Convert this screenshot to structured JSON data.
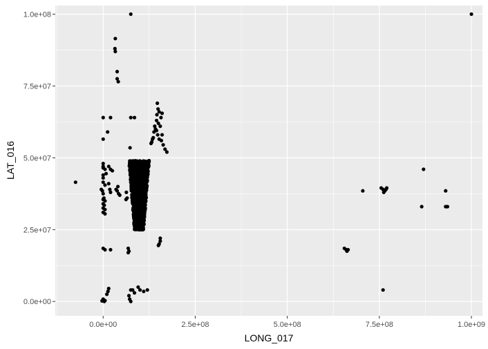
{
  "chart_data": {
    "type": "scatter",
    "xlabel": "LONG_017",
    "ylabel": "LAT_016",
    "xlim": [
      -130000000,
      1030000000
    ],
    "ylim": [
      -5000000,
      103000000
    ],
    "x_ticks": [
      {
        "value": 0,
        "label": "0.0e+00"
      },
      {
        "value": 250000000,
        "label": "2.5e+08"
      },
      {
        "value": 500000000,
        "label": "5.0e+08"
      },
      {
        "value": 750000000,
        "label": "7.5e+08"
      },
      {
        "value": 1000000000,
        "label": "1.0e+09"
      }
    ],
    "y_ticks": [
      {
        "value": 0,
        "label": "0.0e+00"
      },
      {
        "value": 25000000,
        "label": "2.5e+07"
      },
      {
        "value": 50000000,
        "label": "5.0e+07"
      },
      {
        "value": 75000000,
        "label": "7.5e+07"
      },
      {
        "value": 100000000,
        "label": "1.0e+08"
      }
    ],
    "grid": true,
    "background": "#EBEBEB",
    "grid_color": "#FFFFFF",
    "point_color": "#000000",
    "points": [
      [
        75000000,
        100000000
      ],
      [
        1000000000,
        100000000
      ],
      [
        -75000000,
        41500000
      ],
      [
        33000000,
        91500000
      ],
      [
        32000000,
        88000000
      ],
      [
        33000000,
        87000000
      ],
      [
        38000000,
        80000000
      ],
      [
        38000000,
        77500000
      ],
      [
        41000000,
        76500000
      ],
      [
        0,
        64000000
      ],
      [
        0,
        56500000
      ],
      [
        12000000,
        59000000
      ],
      [
        20000000,
        64000000
      ],
      [
        75000000,
        64000000
      ],
      [
        85000000,
        64000000
      ],
      [
        73000000,
        53500000
      ],
      [
        147000000,
        69000000
      ],
      [
        149000000,
        67000000
      ],
      [
        146000000,
        65000000
      ],
      [
        152000000,
        66000000
      ],
      [
        145000000,
        63000000
      ],
      [
        150000000,
        62000000
      ],
      [
        142000000,
        60000000
      ],
      [
        138000000,
        59000000
      ],
      [
        155000000,
        61000000
      ],
      [
        157000000,
        64000000
      ],
      [
        160000000,
        65500000
      ],
      [
        136000000,
        57000000
      ],
      [
        132000000,
        55500000
      ],
      [
        130000000,
        55000000
      ],
      [
        152000000,
        56500000
      ],
      [
        158000000,
        56000000
      ],
      [
        163000000,
        54500000
      ],
      [
        168000000,
        53000000
      ],
      [
        173000000,
        52000000
      ],
      [
        160000000,
        58000000
      ],
      [
        140000000,
        61000000
      ],
      [
        134000000,
        56500000
      ],
      [
        148000000,
        58000000
      ],
      [
        145000000,
        59500000
      ],
      [
        0,
        48000000
      ],
      [
        0,
        47000000
      ],
      [
        0,
        46500000
      ],
      [
        5000000,
        46000000
      ],
      [
        0,
        44000000
      ],
      [
        0,
        43000000
      ],
      [
        8000000,
        44500000
      ],
      [
        15000000,
        47000000
      ],
      [
        20000000,
        46000000
      ],
      [
        25000000,
        45500000
      ],
      [
        0,
        41500000
      ],
      [
        5000000,
        40500000
      ],
      [
        -5000000,
        39000000
      ],
      [
        -2000000,
        38500000
      ],
      [
        0,
        37500000
      ],
      [
        2000000,
        36000000
      ],
      [
        0,
        35500000
      ],
      [
        5000000,
        35000000
      ],
      [
        0,
        34000000
      ],
      [
        3000000,
        33500000
      ],
      [
        0,
        32500000
      ],
      [
        5000000,
        32000000
      ],
      [
        0,
        31000000
      ],
      [
        5000000,
        30500000
      ],
      [
        15000000,
        41000000
      ],
      [
        18000000,
        39000000
      ],
      [
        20000000,
        38000000
      ],
      [
        35000000,
        39000000
      ],
      [
        38000000,
        38500000
      ],
      [
        42000000,
        37500000
      ],
      [
        45000000,
        37000000
      ],
      [
        40000000,
        40000000
      ],
      [
        0,
        18500000
      ],
      [
        5000000,
        18000000
      ],
      [
        20000000,
        18000000
      ],
      [
        68000000,
        18500000
      ],
      [
        70000000,
        17500000
      ],
      [
        68000000,
        17000000
      ],
      [
        155000000,
        22000000
      ],
      [
        155000000,
        21000000
      ],
      [
        152000000,
        20000000
      ],
      [
        150000000,
        19500000
      ],
      [
        63000000,
        38000000
      ],
      [
        65000000,
        36000000
      ],
      [
        62000000,
        35500000
      ],
      [
        0,
        800000
      ],
      [
        3000000,
        0
      ],
      [
        -3000000,
        200000
      ],
      [
        0,
        500000
      ],
      [
        5000000,
        300000
      ],
      [
        15000000,
        4500000
      ],
      [
        13000000,
        3500000
      ],
      [
        10000000,
        2500000
      ],
      [
        70000000,
        2000000
      ],
      [
        75000000,
        4000000
      ],
      [
        80000000,
        4000000
      ],
      [
        85000000,
        3000000
      ],
      [
        95000000,
        5000000
      ],
      [
        100000000,
        4000000
      ],
      [
        110000000,
        3500000
      ],
      [
        120000000,
        4000000
      ],
      [
        75000000,
        0
      ],
      [
        72000000,
        800000
      ],
      [
        655000000,
        18500000
      ],
      [
        660000000,
        18000000
      ],
      [
        665000000,
        18000000
      ],
      [
        662000000,
        17500000
      ],
      [
        705000000,
        38500000
      ],
      [
        755000000,
        39500000
      ],
      [
        760000000,
        39000000
      ],
      [
        765000000,
        38500000
      ],
      [
        770000000,
        39500000
      ],
      [
        762000000,
        38000000
      ],
      [
        768000000,
        39000000
      ],
      [
        760000000,
        4000000
      ],
      [
        865000000,
        33000000
      ],
      [
        870000000,
        46000000
      ],
      [
        930000000,
        38500000
      ],
      [
        930000000,
        33000000
      ],
      [
        935000000,
        33000000
      ]
    ],
    "dense_region": {
      "x_range": [
        70000000,
        125000000
      ],
      "y_range": [
        25000000,
        49000000
      ]
    }
  }
}
